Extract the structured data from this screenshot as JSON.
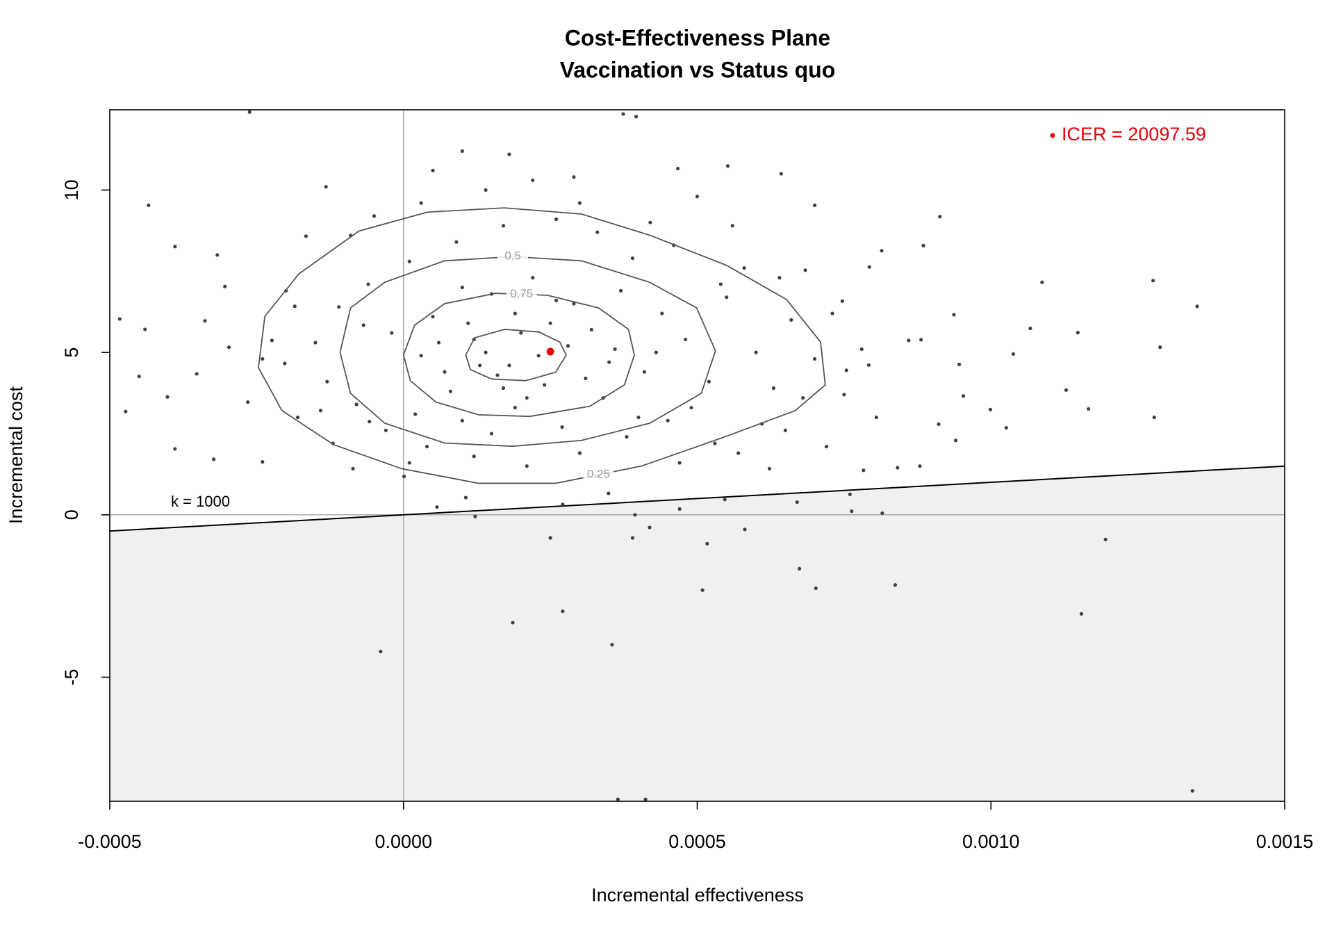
{
  "chart_data": {
    "type": "scatter",
    "title": "Cost-Effectiveness Plane",
    "subtitle": "Vaccination vs Status quo",
    "x_label": "Incremental effectiveness",
    "y_label": "Incremental cost",
    "xlim": [
      -0.0005,
      0.0015
    ],
    "ylim": [
      -8.82,
      12.47
    ],
    "xticks": [
      {
        "value": -0.0005,
        "label": "-0.0005"
      },
      {
        "value": 0,
        "label": "0.0000"
      },
      {
        "value": 0.0005,
        "label": "0.0005"
      },
      {
        "value": 0.001,
        "label": "0.0010"
      },
      {
        "value": 0.0015,
        "label": "0.0015"
      }
    ],
    "yticks": [
      -5,
      0,
      5,
      10
    ],
    "color": "#404040",
    "x": [
      -0.000483,
      -0.000473,
      -0.000434,
      -0.00044,
      -0.000389,
      -0.000317,
      -0.000262,
      -0.000402,
      -0.000389,
      -0.000323,
      -0.00024,
      -3.9e-05,
      0.000186,
      0.000271,
      0.000355,
      0.00025,
      0.00039,
      0.000509,
      0.000702,
      0.000837,
      0.000674,
      0.000517,
      0.000581,
      0.001195,
      0.001154,
      0.001343,
      0.000365,
      0.000412,
      0.000374,
      0.000396,
      0.001351,
      0.001288,
      0.001276,
      0.001278,
      0.001087,
      0.001128,
      0.001148,
      0.001166,
      0.001067,
      0.001038,
      0.001026,
      0.000999,
      0.000913,
      0.000885,
      0.000937,
      0.000946,
      0.000953,
      0.00094,
      0.000911,
      0.000881,
      0.000805,
      0.000814,
      0.000793,
      0.000684,
      0.0007,
      0.000643,
      0.000552,
      0.000467,
      0.000841,
      0.000879,
      0.000783,
      0.00076,
      0.000763,
      0.000815,
      0.00067,
      0.000623,
      0.000547,
      0.00047,
      0.000419,
      0.000394,
      0.000122,
      1e-06,
      5.7e-05,
      0.000106,
      0.000271,
      0.000349,
      0.000792,
      0.000754,
      0.00086,
      0.000747,
      -0.000352,
      -0.000338,
      -0.000297,
      -0.000304,
      -0.000265,
      -0.000185,
      -0.000202,
      -0.000141,
      -0.000166,
      -0.000132,
      -8.6e-05,
      -5.8e-05,
      -6.8e-05,
      -0.000224,
      -0.00045,
      5e-05,
      0.00012,
      0.00018,
      0.00025,
      0.00031,
      8e-05,
      0.00015,
      0.00022,
      0.00029,
      0.00036,
      0.00041,
      3e-05,
      -2e-05,
      0.0001,
      0.00019,
      0.00027,
      0.00034,
      0.00044,
      0.00048,
      0.00052,
      0.00055,
      0.0006,
      0.00063,
      0.00058,
      0.00046,
      0.00039,
      0.00033,
      0.00026,
      0.00017,
      9e-05,
      1e-05,
      -6e-05,
      -0.00011,
      -0.00015,
      -0.00013,
      -8e-05,
      -3e-05,
      4e-05,
      0.00012,
      0.00021,
      0.0003,
      0.00038,
      0.00045,
      0.00053,
      0.00061,
      0.00068,
      0.0007,
      0.00066,
      0.00014,
      0.00016,
      0.0002,
      0.00023,
      0.00013,
      0.00024,
      0.00028,
      0.00011,
      7e-05,
      0.00019,
      0.00032,
      0.00035,
      6e-05,
      0.00017,
      0.00021,
      0.00026,
      0.0001,
      2e-05,
      0.00037,
      0.00043,
      0.00049,
      0.00054,
      0.0004,
      -9e-05,
      -5e-05,
      3e-05,
      0.00014,
      0.00022,
      0.00029,
      0.00018,
      0.0001,
      5e-05,
      0.0003,
      0.00042,
      0.0005,
      0.00056,
      0.00064,
      0.00073,
      0.00078,
      0.00075,
      0.00072,
      0.00065,
      -0.00018,
      -0.0002,
      -0.00024,
      -0.00012,
      1e-05,
      0.00015,
      0.00033,
      0.00047,
      0.00057
    ],
    "values": [
      6.03,
      3.18,
      9.53,
      5.71,
      8.26,
      8.0,
      12.4,
      3.63,
      2.03,
      1.71,
      1.63,
      -4.21,
      -3.32,
      -2.97,
      -4.0,
      -0.71,
      -0.71,
      -2.32,
      -2.26,
      -2.16,
      -1.66,
      -0.89,
      -0.45,
      -0.76,
      -3.05,
      -8.5,
      -8.76,
      -8.76,
      12.34,
      12.26,
      6.42,
      5.16,
      7.21,
      3.0,
      7.16,
      3.84,
      5.61,
      3.26,
      5.74,
      4.95,
      2.68,
      3.24,
      9.18,
      8.29,
      6.16,
      4.63,
      3.66,
      2.29,
      2.79,
      5.39,
      3.0,
      8.13,
      7.63,
      7.53,
      9.53,
      10.5,
      10.74,
      10.66,
      1.45,
      1.5,
      1.37,
      0.63,
      0.11,
      0.05,
      0.39,
      1.42,
      0.47,
      0.18,
      -0.39,
      0.0,
      -0.05,
      1.18,
      0.24,
      0.53,
      0.32,
      0.66,
      4.61,
      4.45,
      5.37,
      6.58,
      4.34,
      5.97,
      5.16,
      7.03,
      3.47,
      6.42,
      4.66,
      3.21,
      8.58,
      10.1,
      1.42,
      2.87,
      5.84,
      5.37,
      4.26,
      6.1,
      5.4,
      4.6,
      5.9,
      4.2,
      3.8,
      6.8,
      7.3,
      6.5,
      5.1,
      4.4,
      4.9,
      5.6,
      2.9,
      3.3,
      2.7,
      3.6,
      6.2,
      5.4,
      4.1,
      6.7,
      5.0,
      3.9,
      7.6,
      8.3,
      7.9,
      8.7,
      9.1,
      8.9,
      8.4,
      7.8,
      7.1,
      6.4,
      5.3,
      4.1,
      3.4,
      2.6,
      2.1,
      1.8,
      1.5,
      1.9,
      2.4,
      2.9,
      2.2,
      2.8,
      3.6,
      4.8,
      6.0,
      5.0,
      4.3,
      5.6,
      4.9,
      4.6,
      4.0,
      5.2,
      5.9,
      4.4,
      6.2,
      5.7,
      4.7,
      5.3,
      3.9,
      3.6,
      6.6,
      7.0,
      3.1,
      6.9,
      5.0,
      3.3,
      7.1,
      3.0,
      8.6,
      9.2,
      9.6,
      10.0,
      10.3,
      10.4,
      11.1,
      11.2,
      10.6,
      9.6,
      9.0,
      9.8,
      8.9,
      7.3,
      6.2,
      5.1,
      3.7,
      2.1,
      2.6,
      3.0,
      6.9,
      4.8,
      2.2,
      1.6,
      2.5,
      1.2,
      1.6,
      1.9
    ],
    "contours": [
      {
        "label": "0.25",
        "x": [
          -0.000247,
          -0.000236,
          -0.000178,
          -7.57e-05,
          4.08e-05,
          0.000172,
          0.000303,
          0.000419,
          0.00055,
          0.000652,
          0.00071,
          0.000718,
          0.000667,
          0.00055,
          0.000405,
          0.000259,
          0.000128,
          -3e-06,
          -0.000119,
          -0.000207
        ],
        "y": [
          4.53,
          6.11,
          7.42,
          8.74,
          9.32,
          9.45,
          9.26,
          8.61,
          7.68,
          6.63,
          5.32,
          4.0,
          3.21,
          2.42,
          1.5,
          0.97,
          0.97,
          1.42,
          2.16,
          3.21
        ]
      },
      {
        "label": "0.5",
        "x": [
          -0.000108,
          -9.02e-05,
          -3.2e-05,
          6.99e-05,
          0.000186,
          0.000303,
          0.000419,
          0.000499,
          0.000531,
          0.000507,
          0.000419,
          0.000303,
          0.000186,
          6.99e-05,
          -3.2e-05,
          -9.02e-05
        ],
        "y": [
          5.0,
          6.37,
          7.16,
          7.82,
          7.95,
          7.82,
          7.16,
          6.37,
          5.05,
          3.74,
          2.82,
          2.29,
          2.11,
          2.21,
          2.82,
          3.74
        ]
      },
      {
        "label": "0.75",
        "x": [
          0,
          1.89e-05,
          6.99e-05,
          0.000157,
          0.000245,
          0.000332,
          0.000383,
          0.000393,
          0.000376,
          0.000317,
          0.000215,
          0.000128,
          5.53e-05,
          1.16e-05
        ],
        "y": [
          4.92,
          5.84,
          6.5,
          6.82,
          6.76,
          6.37,
          5.71,
          4.92,
          4.0,
          3.34,
          3.03,
          3.08,
          3.47,
          4.13
        ]
      },
      {
        "x": [
          0.000106,
          0.000121,
          0.000172,
          0.00023,
          0.000266,
          0.000277,
          0.000259,
          0.000208,
          0.00015,
          0.000114
        ],
        "y": [
          4.92,
          5.45,
          5.71,
          5.63,
          5.32,
          4.92,
          4.39,
          4.13,
          4.18,
          4.47
        ]
      }
    ],
    "wtp": 1000,
    "wtp_label": "k = 1000",
    "mean_x": 0.00025,
    "mean_y": 5.025,
    "mean_color": "#e8000b",
    "icer": {
      "value": 20097.59,
      "label": "ICER = 20097.59"
    },
    "region_color": "#f0f0f0"
  }
}
